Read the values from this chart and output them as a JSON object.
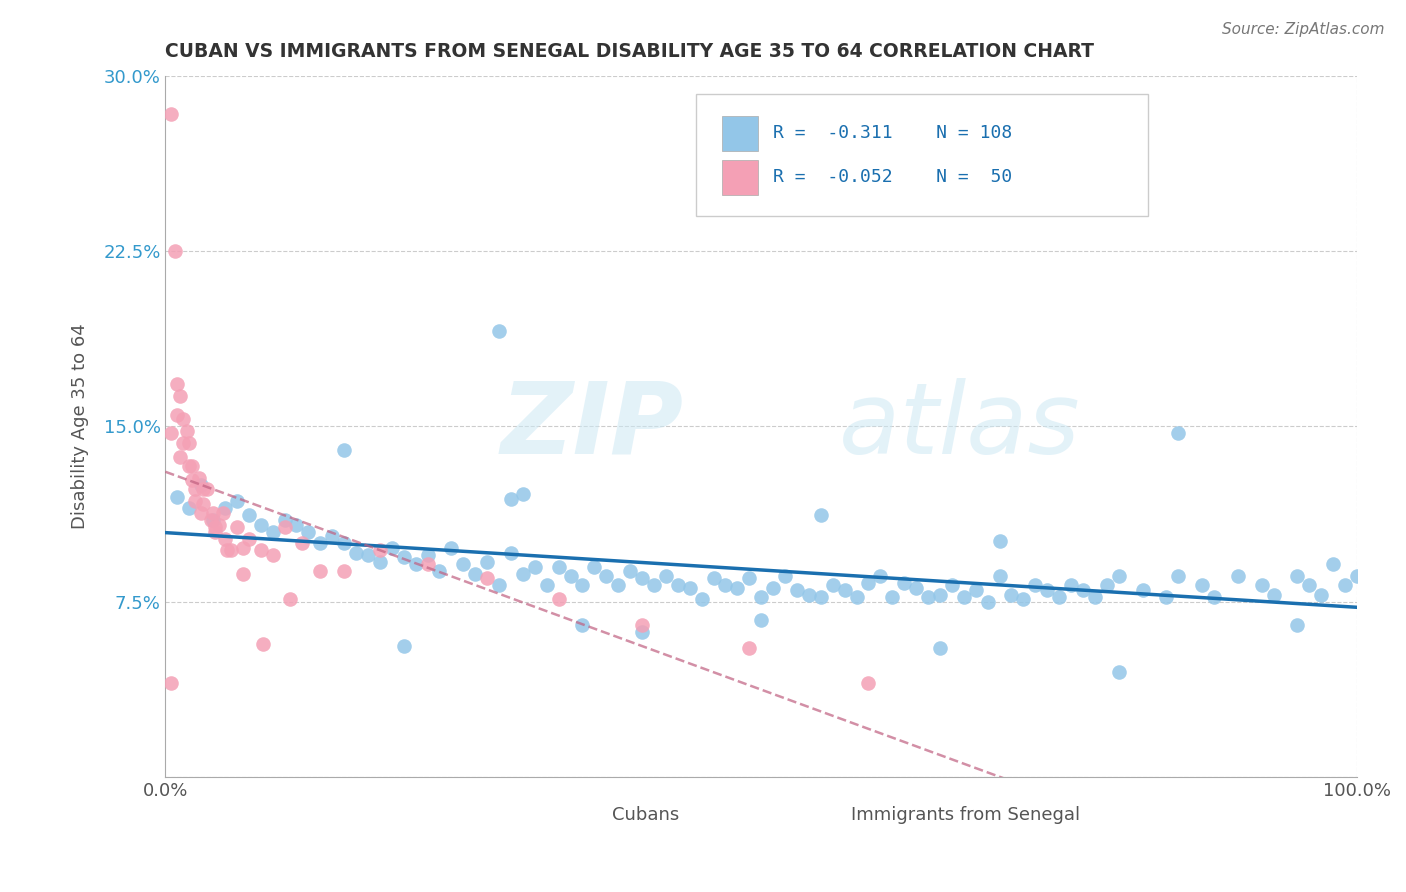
{
  "title": "CUBAN VS IMMIGRANTS FROM SENEGAL DISABILITY AGE 35 TO 64 CORRELATION CHART",
  "source": "Source: ZipAtlas.com",
  "ylabel": "Disability Age 35 to 64",
  "xlabel": "",
  "xlim": [
    0.0,
    1.0
  ],
  "ylim": [
    0.0,
    0.3
  ],
  "xticks": [
    0.0,
    0.25,
    0.5,
    0.75,
    1.0
  ],
  "xtick_labels": [
    "0.0%",
    "",
    "",
    "",
    "100.0%"
  ],
  "yticks": [
    0.0,
    0.075,
    0.15,
    0.225,
    0.3
  ],
  "ytick_labels": [
    "",
    "7.5%",
    "15.0%",
    "22.5%",
    "30.0%"
  ],
  "cuban_R": -0.311,
  "cuban_N": 108,
  "senegal_R": -0.052,
  "senegal_N": 50,
  "legend_label_cuban": "Cubans",
  "legend_label_senegal": "Immigrants from Senegal",
  "cuban_color": "#93c6e8",
  "senegal_color": "#f4a0b5",
  "cuban_line_color": "#1a6faf",
  "senegal_line_color": "#c06080",
  "background_color": "#ffffff",
  "grid_color": "#cccccc",
  "title_color": "#333333",
  "watermark_zip": "ZIP",
  "watermark_atlas": "atlas",
  "cuban_x": [
    0.01,
    0.02,
    0.03,
    0.04,
    0.05,
    0.06,
    0.07,
    0.08,
    0.09,
    0.1,
    0.11,
    0.12,
    0.13,
    0.14,
    0.15,
    0.16,
    0.17,
    0.18,
    0.19,
    0.2,
    0.21,
    0.22,
    0.23,
    0.24,
    0.25,
    0.26,
    0.27,
    0.28,
    0.29,
    0.3,
    0.31,
    0.32,
    0.33,
    0.34,
    0.35,
    0.36,
    0.37,
    0.38,
    0.39,
    0.4,
    0.41,
    0.42,
    0.43,
    0.44,
    0.45,
    0.46,
    0.47,
    0.48,
    0.49,
    0.5,
    0.51,
    0.52,
    0.53,
    0.54,
    0.55,
    0.56,
    0.57,
    0.58,
    0.59,
    0.6,
    0.61,
    0.62,
    0.63,
    0.64,
    0.65,
    0.66,
    0.67,
    0.68,
    0.69,
    0.7,
    0.71,
    0.72,
    0.73,
    0.74,
    0.75,
    0.76,
    0.77,
    0.78,
    0.79,
    0.8,
    0.82,
    0.84,
    0.85,
    0.87,
    0.88,
    0.9,
    0.92,
    0.93,
    0.95,
    0.96,
    0.97,
    0.98,
    0.99,
    1.0,
    0.28,
    0.29,
    0.3,
    0.55,
    0.7,
    0.85,
    0.2,
    0.35,
    0.5,
    0.65,
    0.8,
    0.95,
    0.15,
    0.4
  ],
  "cuban_y": [
    0.12,
    0.115,
    0.125,
    0.11,
    0.115,
    0.118,
    0.112,
    0.108,
    0.105,
    0.11,
    0.108,
    0.105,
    0.1,
    0.103,
    0.1,
    0.096,
    0.095,
    0.092,
    0.098,
    0.094,
    0.091,
    0.095,
    0.088,
    0.098,
    0.091,
    0.087,
    0.092,
    0.082,
    0.096,
    0.087,
    0.09,
    0.082,
    0.09,
    0.086,
    0.082,
    0.09,
    0.086,
    0.082,
    0.088,
    0.085,
    0.082,
    0.086,
    0.082,
    0.081,
    0.076,
    0.085,
    0.082,
    0.081,
    0.085,
    0.077,
    0.081,
    0.086,
    0.08,
    0.078,
    0.077,
    0.082,
    0.08,
    0.077,
    0.083,
    0.086,
    0.077,
    0.083,
    0.081,
    0.077,
    0.078,
    0.082,
    0.077,
    0.08,
    0.075,
    0.086,
    0.078,
    0.076,
    0.082,
    0.08,
    0.077,
    0.082,
    0.08,
    0.077,
    0.082,
    0.086,
    0.08,
    0.077,
    0.086,
    0.082,
    0.077,
    0.086,
    0.082,
    0.078,
    0.086,
    0.082,
    0.078,
    0.091,
    0.082,
    0.086,
    0.191,
    0.119,
    0.121,
    0.112,
    0.101,
    0.147,
    0.056,
    0.065,
    0.067,
    0.055,
    0.045,
    0.065,
    0.14,
    0.062
  ],
  "senegal_x": [
    0.005,
    0.008,
    0.01,
    0.01,
    0.012,
    0.015,
    0.015,
    0.018,
    0.02,
    0.02,
    0.022,
    0.025,
    0.025,
    0.028,
    0.03,
    0.032,
    0.035,
    0.038,
    0.04,
    0.042,
    0.045,
    0.048,
    0.05,
    0.055,
    0.06,
    0.065,
    0.07,
    0.08,
    0.09,
    0.1,
    0.115,
    0.13,
    0.15,
    0.18,
    0.22,
    0.27,
    0.33,
    0.4,
    0.49,
    0.59,
    0.005,
    0.012,
    0.022,
    0.032,
    0.042,
    0.052,
    0.065,
    0.082,
    0.105,
    0.005
  ],
  "senegal_y": [
    0.284,
    0.225,
    0.168,
    0.155,
    0.163,
    0.153,
    0.143,
    0.148,
    0.143,
    0.133,
    0.133,
    0.123,
    0.118,
    0.128,
    0.113,
    0.123,
    0.123,
    0.11,
    0.113,
    0.105,
    0.108,
    0.113,
    0.102,
    0.097,
    0.107,
    0.098,
    0.102,
    0.097,
    0.095,
    0.107,
    0.1,
    0.088,
    0.088,
    0.097,
    0.091,
    0.085,
    0.076,
    0.065,
    0.055,
    0.04,
    0.147,
    0.137,
    0.127,
    0.117,
    0.107,
    0.097,
    0.087,
    0.057,
    0.076,
    0.04
  ]
}
